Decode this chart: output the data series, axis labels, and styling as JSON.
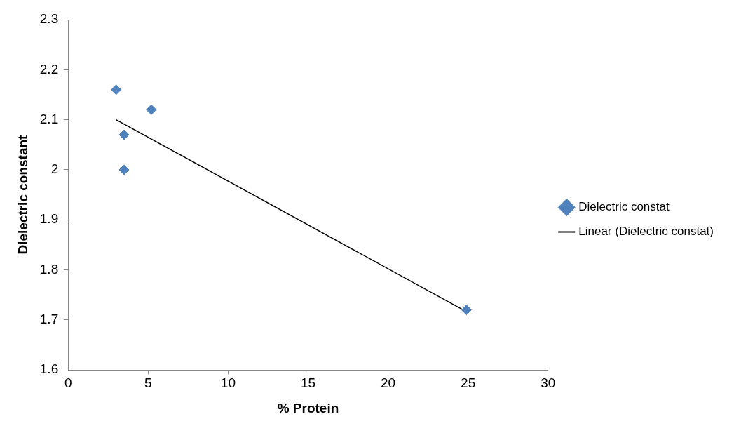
{
  "chart_data": {
    "type": "scatter",
    "xlabel": "% Protein",
    "ylabel": "Dielectric constant",
    "xlim": [
      0,
      30
    ],
    "xticks": [
      0,
      5,
      10,
      15,
      20,
      25,
      30
    ],
    "ylim": [
      1.6,
      2.3
    ],
    "yticks": [
      1.6,
      1.7,
      1.8,
      1.9,
      2,
      2.1,
      2.2,
      2.3
    ],
    "grid": false,
    "legend": "right",
    "series": [
      {
        "name": "Dielectric constat",
        "type": "scatter",
        "color": "#4f81bd",
        "marker": "diamond",
        "x": [
          3.0,
          3.5,
          3.5,
          5.2,
          24.9
        ],
        "values": [
          2.16,
          2.07,
          2.0,
          2.12,
          1.72
        ]
      },
      {
        "name": "Linear (Dielectric constat)",
        "type": "line",
        "color": "#000000",
        "marker": "none",
        "line_style": "solid",
        "x": [
          3.0,
          24.7
        ],
        "values": [
          2.1,
          1.72
        ]
      }
    ]
  }
}
